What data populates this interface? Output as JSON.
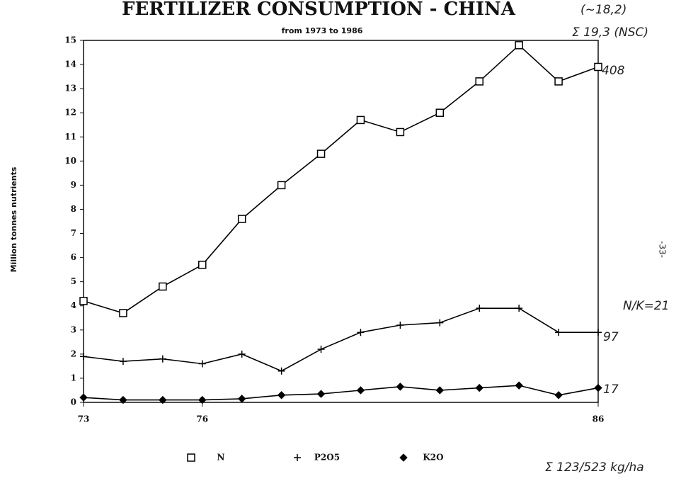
{
  "chart_data": {
    "type": "line",
    "title": "FERTILIZER CONSUMPTION - CHINA",
    "subtitle": "from 1973 to 1986",
    "y_label": "Million tonnes nutrients",
    "x": [
      73,
      74,
      75,
      76,
      77,
      78,
      79,
      80,
      81,
      82,
      83,
      84,
      85,
      86
    ],
    "series": [
      {
        "name": "N",
        "color": "#000000",
        "marker": "square",
        "values": [
          4.2,
          3.7,
          4.8,
          5.7,
          7.6,
          9.0,
          10.3,
          11.7,
          11.2,
          12.0,
          13.3,
          14.8,
          13.3,
          13.9
        ]
      },
      {
        "name": "P2O5",
        "color": "#000000",
        "marker": "plus",
        "values": [
          1.9,
          1.7,
          1.8,
          1.6,
          2.0,
          1.3,
          2.2,
          2.9,
          3.2,
          3.3,
          3.9,
          3.9,
          2.9,
          2.9
        ]
      },
      {
        "name": "K2O",
        "color": "#000000",
        "marker": "diamond",
        "values": [
          0.2,
          0.1,
          0.1,
          0.1,
          0.15,
          0.3,
          0.35,
          0.5,
          0.65,
          0.5,
          0.6,
          0.7,
          0.3,
          0.6
        ]
      }
    ],
    "xlim": [
      73,
      86
    ],
    "xticks": [
      73,
      76,
      86
    ],
    "ylim": [
      0,
      15
    ],
    "yticks": [
      0,
      1,
      2,
      3,
      4,
      5,
      6,
      7,
      8,
      9,
      10,
      11,
      12,
      13,
      14,
      15
    ],
    "legend": "bottom",
    "annotations": [
      "(~18,2)",
      "Σ 19,3 (NSC)",
      "408",
      "N/K=21",
      "97",
      "17",
      "Σ 123/523 kg/ha",
      "-33-"
    ]
  }
}
